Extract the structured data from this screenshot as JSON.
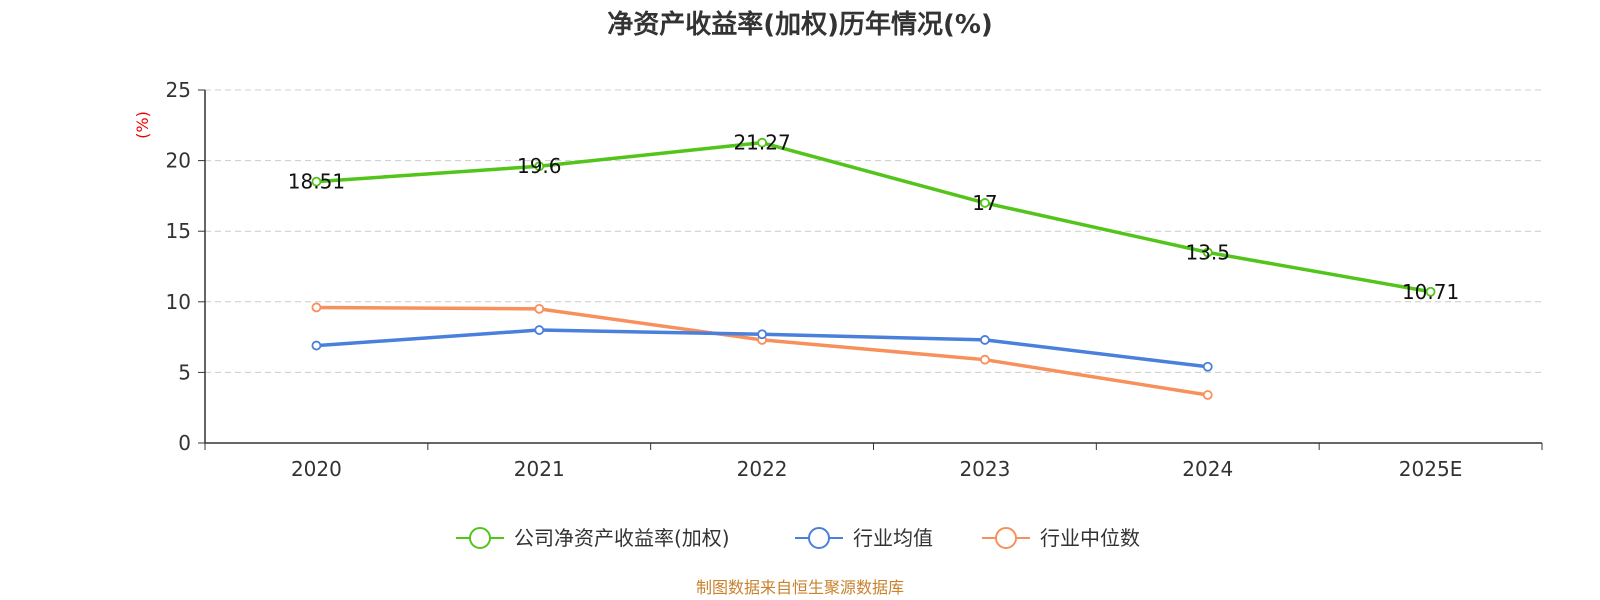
{
  "chart_data": {
    "type": "line",
    "title": "净资产收益率(加权)历年情况(%)",
    "xlabel": "",
    "ylabel": "(%)",
    "categories": [
      "2020",
      "2021",
      "2022",
      "2023",
      "2024",
      "2025E"
    ],
    "ylim": [
      0,
      25
    ],
    "yticks": [
      0,
      5,
      10,
      15,
      20,
      25
    ],
    "grid": true,
    "legend_position": "bottom",
    "series": [
      {
        "name": "公司净资产收益率(加权)",
        "color": "#52c41a",
        "values": [
          18.51,
          19.6,
          21.27,
          17,
          13.5,
          10.71
        ],
        "labels": [
          "18.51",
          "19.6",
          "21.27",
          "17",
          "13.5",
          "10.71"
        ]
      },
      {
        "name": "行业均值",
        "color": "#4a7fdb",
        "values": [
          6.9,
          8.0,
          7.7,
          7.3,
          5.4,
          null
        ]
      },
      {
        "name": "行业中位数",
        "color": "#f7905b",
        "values": [
          9.6,
          9.5,
          7.3,
          5.9,
          3.4,
          null
        ]
      }
    ],
    "source": "制图数据来自恒生聚源数据库",
    "source_color": "#c8822d",
    "ylabel_color": "#ee0000"
  }
}
